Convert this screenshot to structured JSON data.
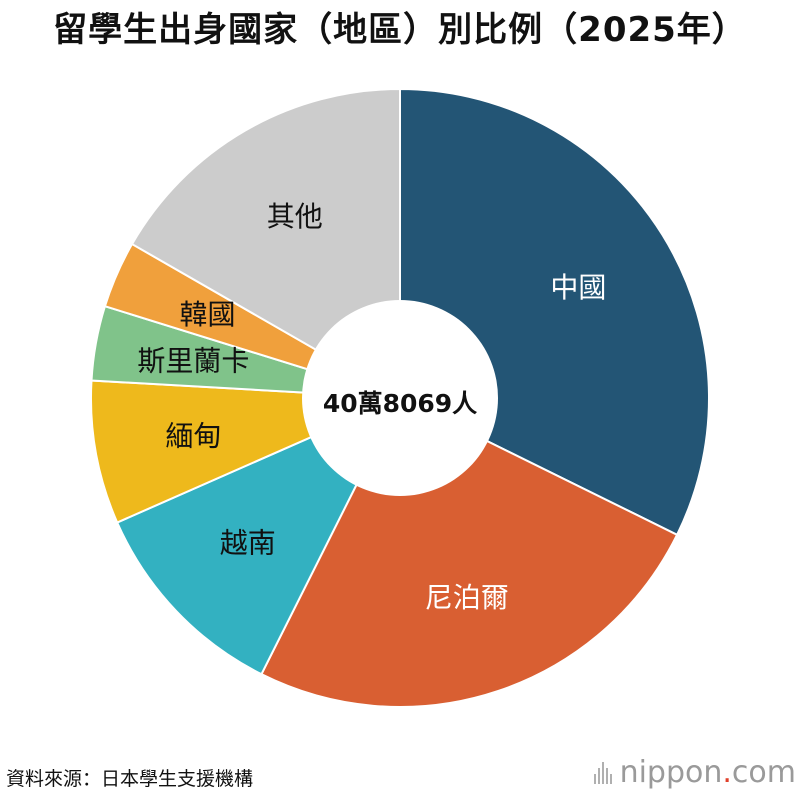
{
  "title": "留學生出身國家（地區）別比例（2025年）",
  "source": "資料來源：日本學生支援機構",
  "brand": {
    "name": "nippon",
    "dot": ".",
    "tld": "com"
  },
  "chart_data": {
    "type": "pie",
    "donut": true,
    "center_label": "40萬8069人",
    "slices": [
      {
        "label": "中國",
        "value": 32.3,
        "color": "#235575",
        "label_color": "#ffffff"
      },
      {
        "label": "尼泊爾",
        "value": 25.1,
        "color": "#d95f32",
        "label_color": "#ffffff"
      },
      {
        "label": "越南",
        "value": 11.0,
        "color": "#33b1c1",
        "label_color": "#111111"
      },
      {
        "label": "緬甸",
        "value": 7.5,
        "color": "#eeb91c",
        "label_color": "#111111"
      },
      {
        "label": "斯里蘭卡",
        "value": 3.9,
        "color": "#80c38a",
        "label_color": "#111111"
      },
      {
        "label": "韓國",
        "value": 3.5,
        "color": "#f0a03c",
        "label_color": "#111111"
      },
      {
        "label": "其他",
        "value": 16.7,
        "color": "#cccccc",
        "label_color": "#111111"
      }
    ]
  }
}
